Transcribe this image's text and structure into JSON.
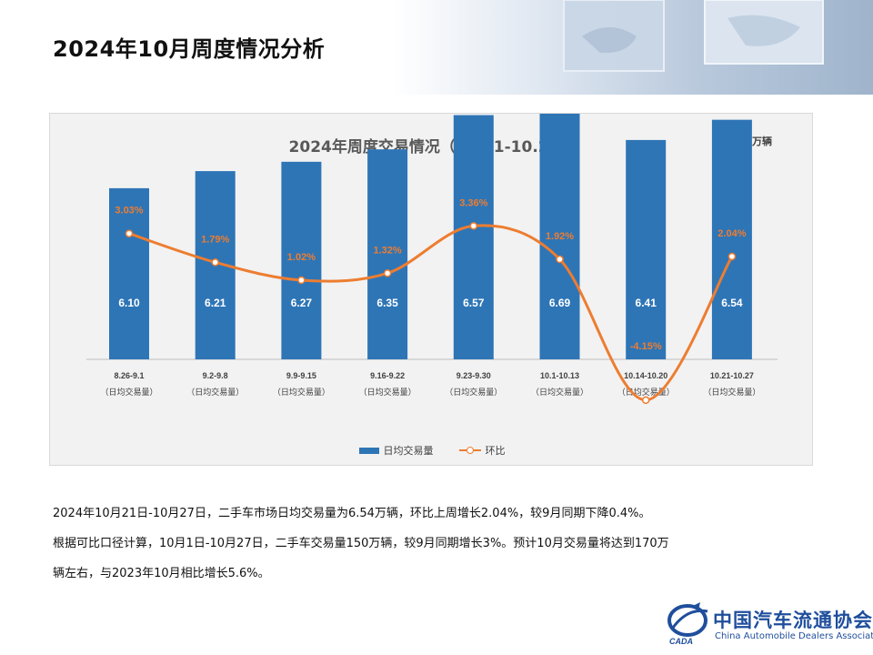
{
  "page": {
    "title": "2024年10月周度情况分析"
  },
  "chart_data": {
    "type": "bar",
    "title": "2024年周度交易情况（10.21-10.27）",
    "unit_label": "单位：万辆",
    "categories": [
      "8.26-9.1",
      "9.2-9.8",
      "9.9-9.15",
      "9.16-9.22",
      "9.23-9.30",
      "10.1-10.13",
      "10.14-10.20",
      "10.21-10.27"
    ],
    "category_sublabel": "（日均交易量）",
    "series": [
      {
        "name": "日均交易量",
        "type": "bar",
        "color": "#2e75b6",
        "values": [
          6.1,
          6.21,
          6.27,
          6.35,
          6.57,
          6.69,
          6.41,
          6.54
        ],
        "labels": [
          "6.10",
          "6.21",
          "6.27",
          "6.35",
          "6.57",
          "6.69",
          "6.41",
          "6.54"
        ]
      },
      {
        "name": "环比",
        "type": "line",
        "color": "#ed7d31",
        "values": [
          3.03,
          1.79,
          1.02,
          1.32,
          3.36,
          1.92,
          -4.15,
          2.04
        ],
        "labels": [
          "3.03%",
          "1.79%",
          "1.02%",
          "1.32%",
          "3.36%",
          "1.92%",
          "-4.15%",
          "2.04%"
        ]
      }
    ],
    "legend_position": "bottom",
    "grid": false
  },
  "summary": {
    "line1": "2024年10月21日-10月27日，二手车市场日均交易量为6.54万辆，环比上周增长2.04%，较9月同期下降0.4%。",
    "line2": "根据可比口径计算，10月1日-10月27日，二手车交易量150万辆，较9月同期增长3%。预计10月交易量将达到170万",
    "line3": "辆左右，与2023年10月相比增长5.6%。"
  },
  "logo": {
    "cn": "中国汽车流通协会",
    "en": "China Automobile Dealers Association",
    "mark_text": "CADA"
  }
}
